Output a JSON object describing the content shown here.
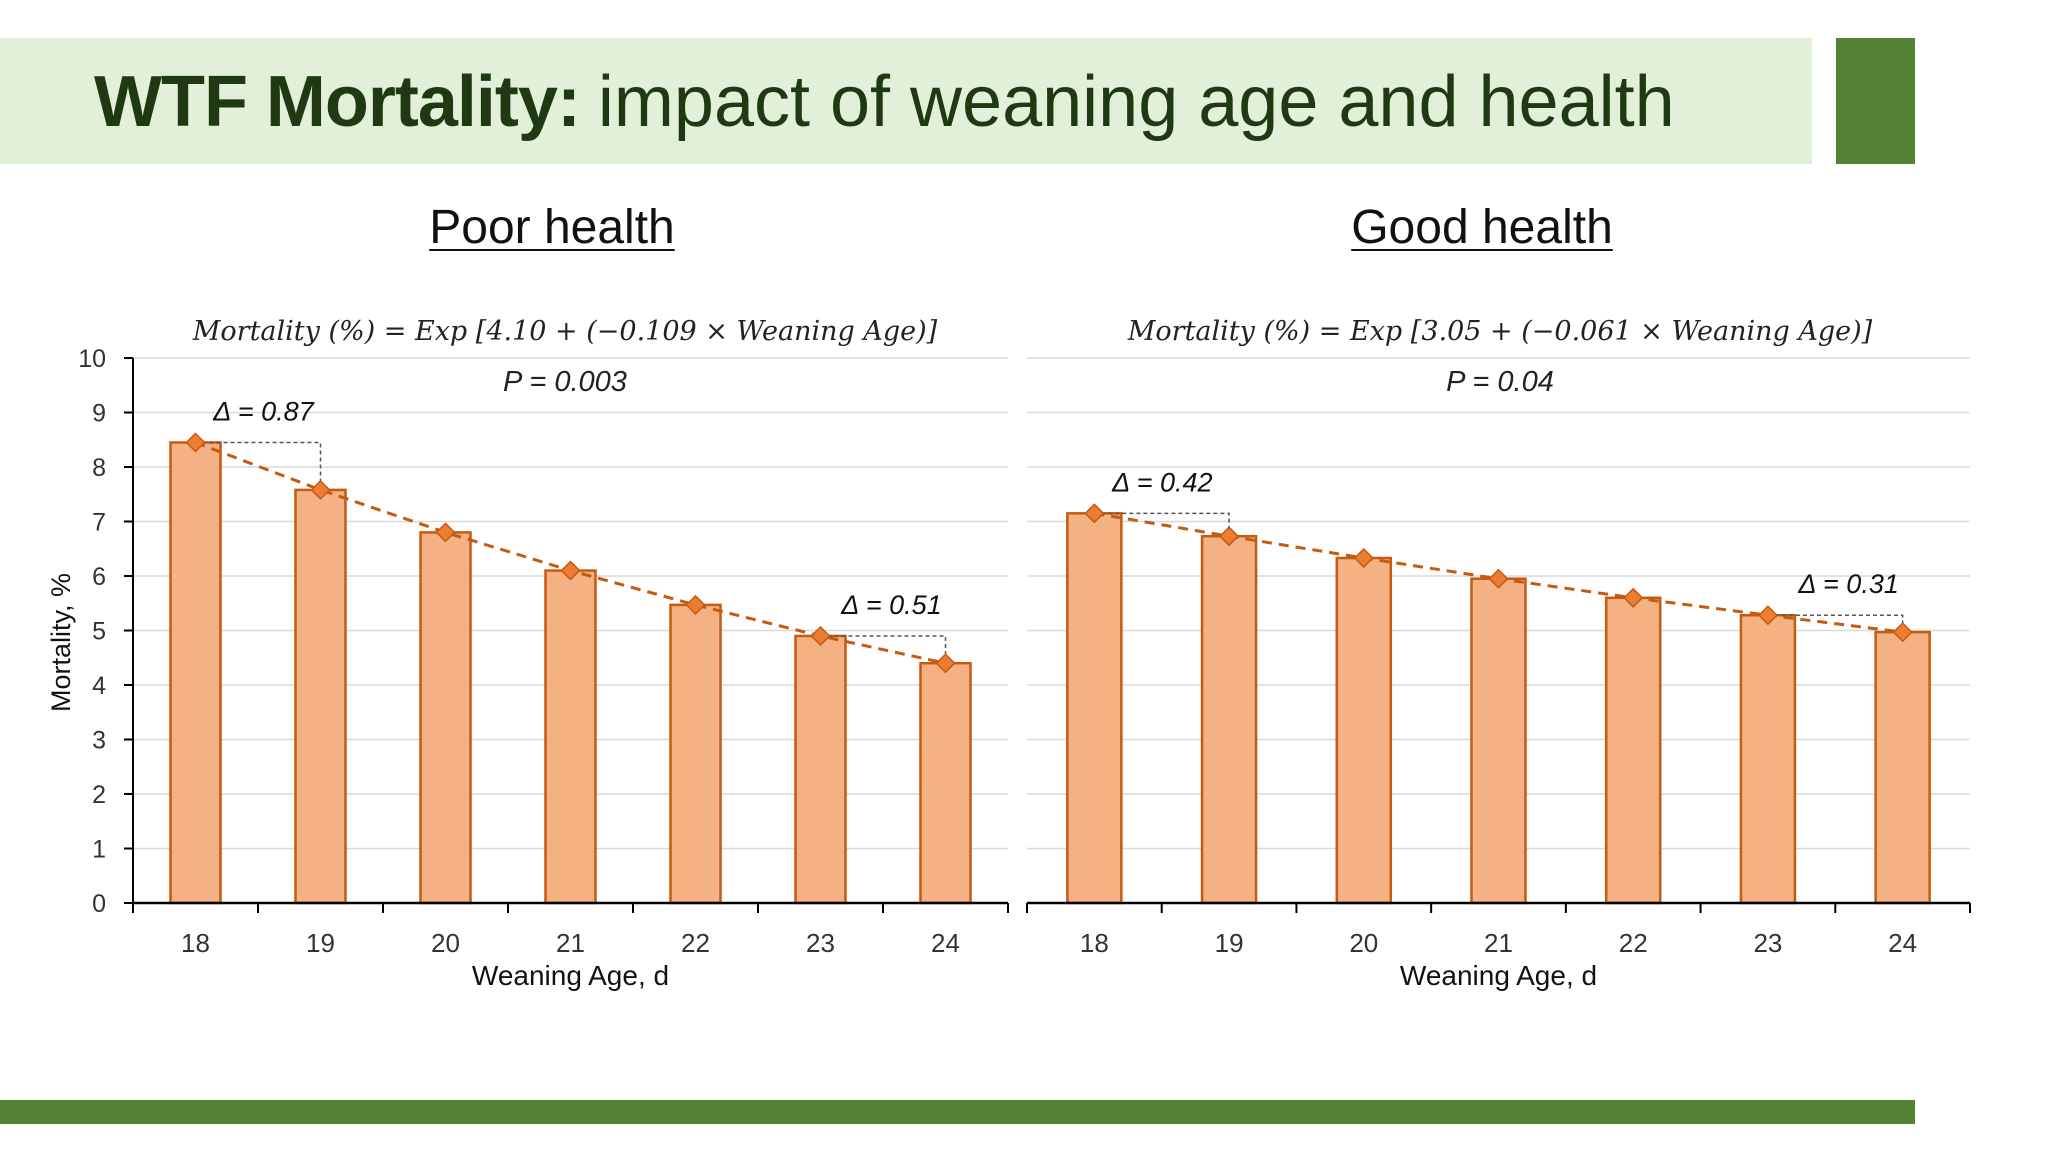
{
  "slide": {
    "title_bold": "WTF Mortality:",
    "title_rest": "impact of weaning age and health"
  },
  "colors": {
    "title_band": "#e2efd9",
    "accent_green": "#548235",
    "bar_fill": "#f4b183",
    "bar_stroke": "#c55a11",
    "marker_fill": "#ed7d31",
    "trend_line": "#c55a11",
    "title_text": "#1f3a12"
  },
  "chart_data": [
    {
      "type": "bar",
      "title": "Poor health",
      "equation": "Mortality (%) = Exp [4.10 + (−0.109  × Weaning Age)]",
      "p_value": "P = 0.003",
      "categories": [
        "18",
        "19",
        "20",
        "21",
        "22",
        "23",
        "24"
      ],
      "values": [
        8.45,
        7.58,
        6.8,
        6.1,
        5.47,
        4.9,
        4.4
      ],
      "trend_values": [
        8.45,
        7.58,
        6.8,
        6.1,
        5.47,
        4.9,
        4.4
      ],
      "ylim": [
        0,
        10
      ],
      "yticks": [
        "0",
        "1",
        "2",
        "3",
        "4",
        "5",
        "6",
        "7",
        "8",
        "9",
        "10"
      ],
      "xlabel": "Weaning Age, d",
      "ylabel": "Mortality, %",
      "grid": true,
      "annotations": [
        {
          "text": "Δ = 0.87",
          "from": 0,
          "to": 1
        },
        {
          "text": "Δ = 0.51",
          "from": 5,
          "to": 6
        }
      ]
    },
    {
      "type": "bar",
      "title": "Good health",
      "equation": "Mortality (%) = Exp [3.05 + (−0.061  × Weaning Age)]",
      "p_value": "P = 0.04",
      "categories": [
        "18",
        "19",
        "20",
        "21",
        "22",
        "23",
        "24"
      ],
      "values": [
        7.15,
        6.73,
        6.33,
        5.95,
        5.6,
        5.28,
        4.97
      ],
      "trend_values": [
        7.15,
        6.73,
        6.33,
        5.95,
        5.6,
        5.28,
        4.97
      ],
      "ylim": [
        0,
        10
      ],
      "yticks": [],
      "xlabel": "Weaning Age, d",
      "ylabel": "",
      "grid": true,
      "annotations": [
        {
          "text": "Δ = 0.42",
          "from": 0,
          "to": 1
        },
        {
          "text": "Δ = 0.31",
          "from": 5,
          "to": 6
        }
      ]
    }
  ]
}
